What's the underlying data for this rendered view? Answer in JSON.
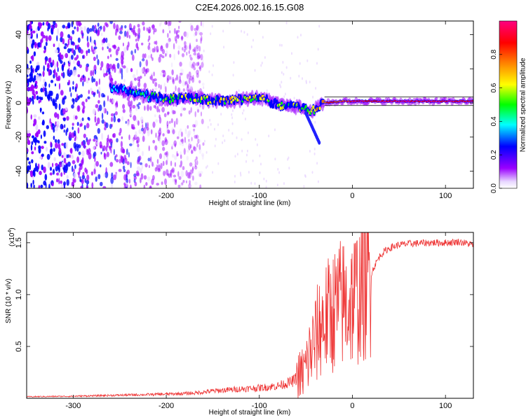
{
  "chart_data": [
    {
      "type": "heatmap",
      "title": "C2E4.2026.002.16.15.G08",
      "xlabel": "Height of straight line (km)",
      "ylabel": "Frequency (Hz)",
      "xlim": [
        -350,
        130
      ],
      "ylim": [
        -50,
        48
      ],
      "x_ticks": [
        -300,
        -200,
        -100,
        0,
        100
      ],
      "y_ticks": [
        -40,
        -20,
        0,
        20,
        40
      ],
      "colorbar": {
        "label": "Normalized spectral amplitude",
        "range": [
          0,
          1
        ],
        "ticks": [
          "0.0",
          "0.2",
          "0.4",
          "0.6",
          "0.8"
        ],
        "colors": [
          "#ffffff",
          "#9a00ff",
          "#0000ff",
          "#00ffff",
          "#00ff00",
          "#ffff00",
          "#ff8000",
          "#ff0000",
          "#ff0080"
        ]
      },
      "ridge": {
        "x": [
          -260,
          -240,
          -220,
          -200,
          -180,
          -160,
          -140,
          -120,
          -100,
          -80,
          -60,
          -45,
          -30,
          -10,
          0,
          50,
          130
        ],
        "center_hz": [
          9,
          7,
          4,
          2,
          3,
          2,
          1,
          2,
          3,
          -1,
          -2,
          -5,
          0,
          1,
          1,
          1,
          1
        ],
        "amplitude": [
          0.25,
          0.3,
          0.4,
          0.45,
          0.5,
          0.5,
          0.55,
          0.55,
          0.55,
          0.5,
          0.5,
          0.45,
          0.75,
          0.8,
          0.85,
          0.9,
          0.85
        ]
      },
      "branch": {
        "x": [
          -50,
          -45,
          -40,
          -35
        ],
        "center_hz": [
          -6,
          -12,
          -18,
          -24
        ]
      },
      "noise_region_x": [
        -350,
        -160
      ]
    },
    {
      "type": "line",
      "xlabel": "Height of straight line (km)",
      "ylabel": "SNR (10 * v/v)",
      "multiplier_label": "(x10",
      "multiplier_exp": "4",
      "multiplier_close": ")",
      "xlim": [
        -350,
        130
      ],
      "ylim": [
        0,
        16000
      ],
      "x_ticks": [
        -300,
        -200,
        -100,
        0,
        100
      ],
      "y_ticks": [
        0.5,
        1.0,
        1.5
      ],
      "y_tick_labels": [
        "0.5",
        "1.0",
        "1.5"
      ],
      "color": "#ee3333",
      "series": [
        {
          "name": "SNR",
          "x": [
            -350,
            -300,
            -250,
            -200,
            -170,
            -150,
            -120,
            -100,
            -80,
            -65,
            -55,
            -50,
            -45,
            -40,
            -35,
            -30,
            -25,
            -20,
            -15,
            -10,
            -5,
            0,
            5,
            10,
            15,
            20,
            25,
            30,
            35,
            40,
            50,
            60,
            80,
            100,
            115,
            130
          ],
          "y": [
            150,
            200,
            300,
            400,
            500,
            700,
            900,
            1000,
            1200,
            1600,
            2200,
            3000,
            4500,
            5500,
            7000,
            7500,
            8000,
            8500,
            9000,
            9200,
            9000,
            9500,
            10000,
            10500,
            11000,
            12000,
            13000,
            13800,
            14200,
            14500,
            14800,
            14900,
            15000,
            15000,
            15100,
            14800
          ]
        }
      ]
    }
  ]
}
